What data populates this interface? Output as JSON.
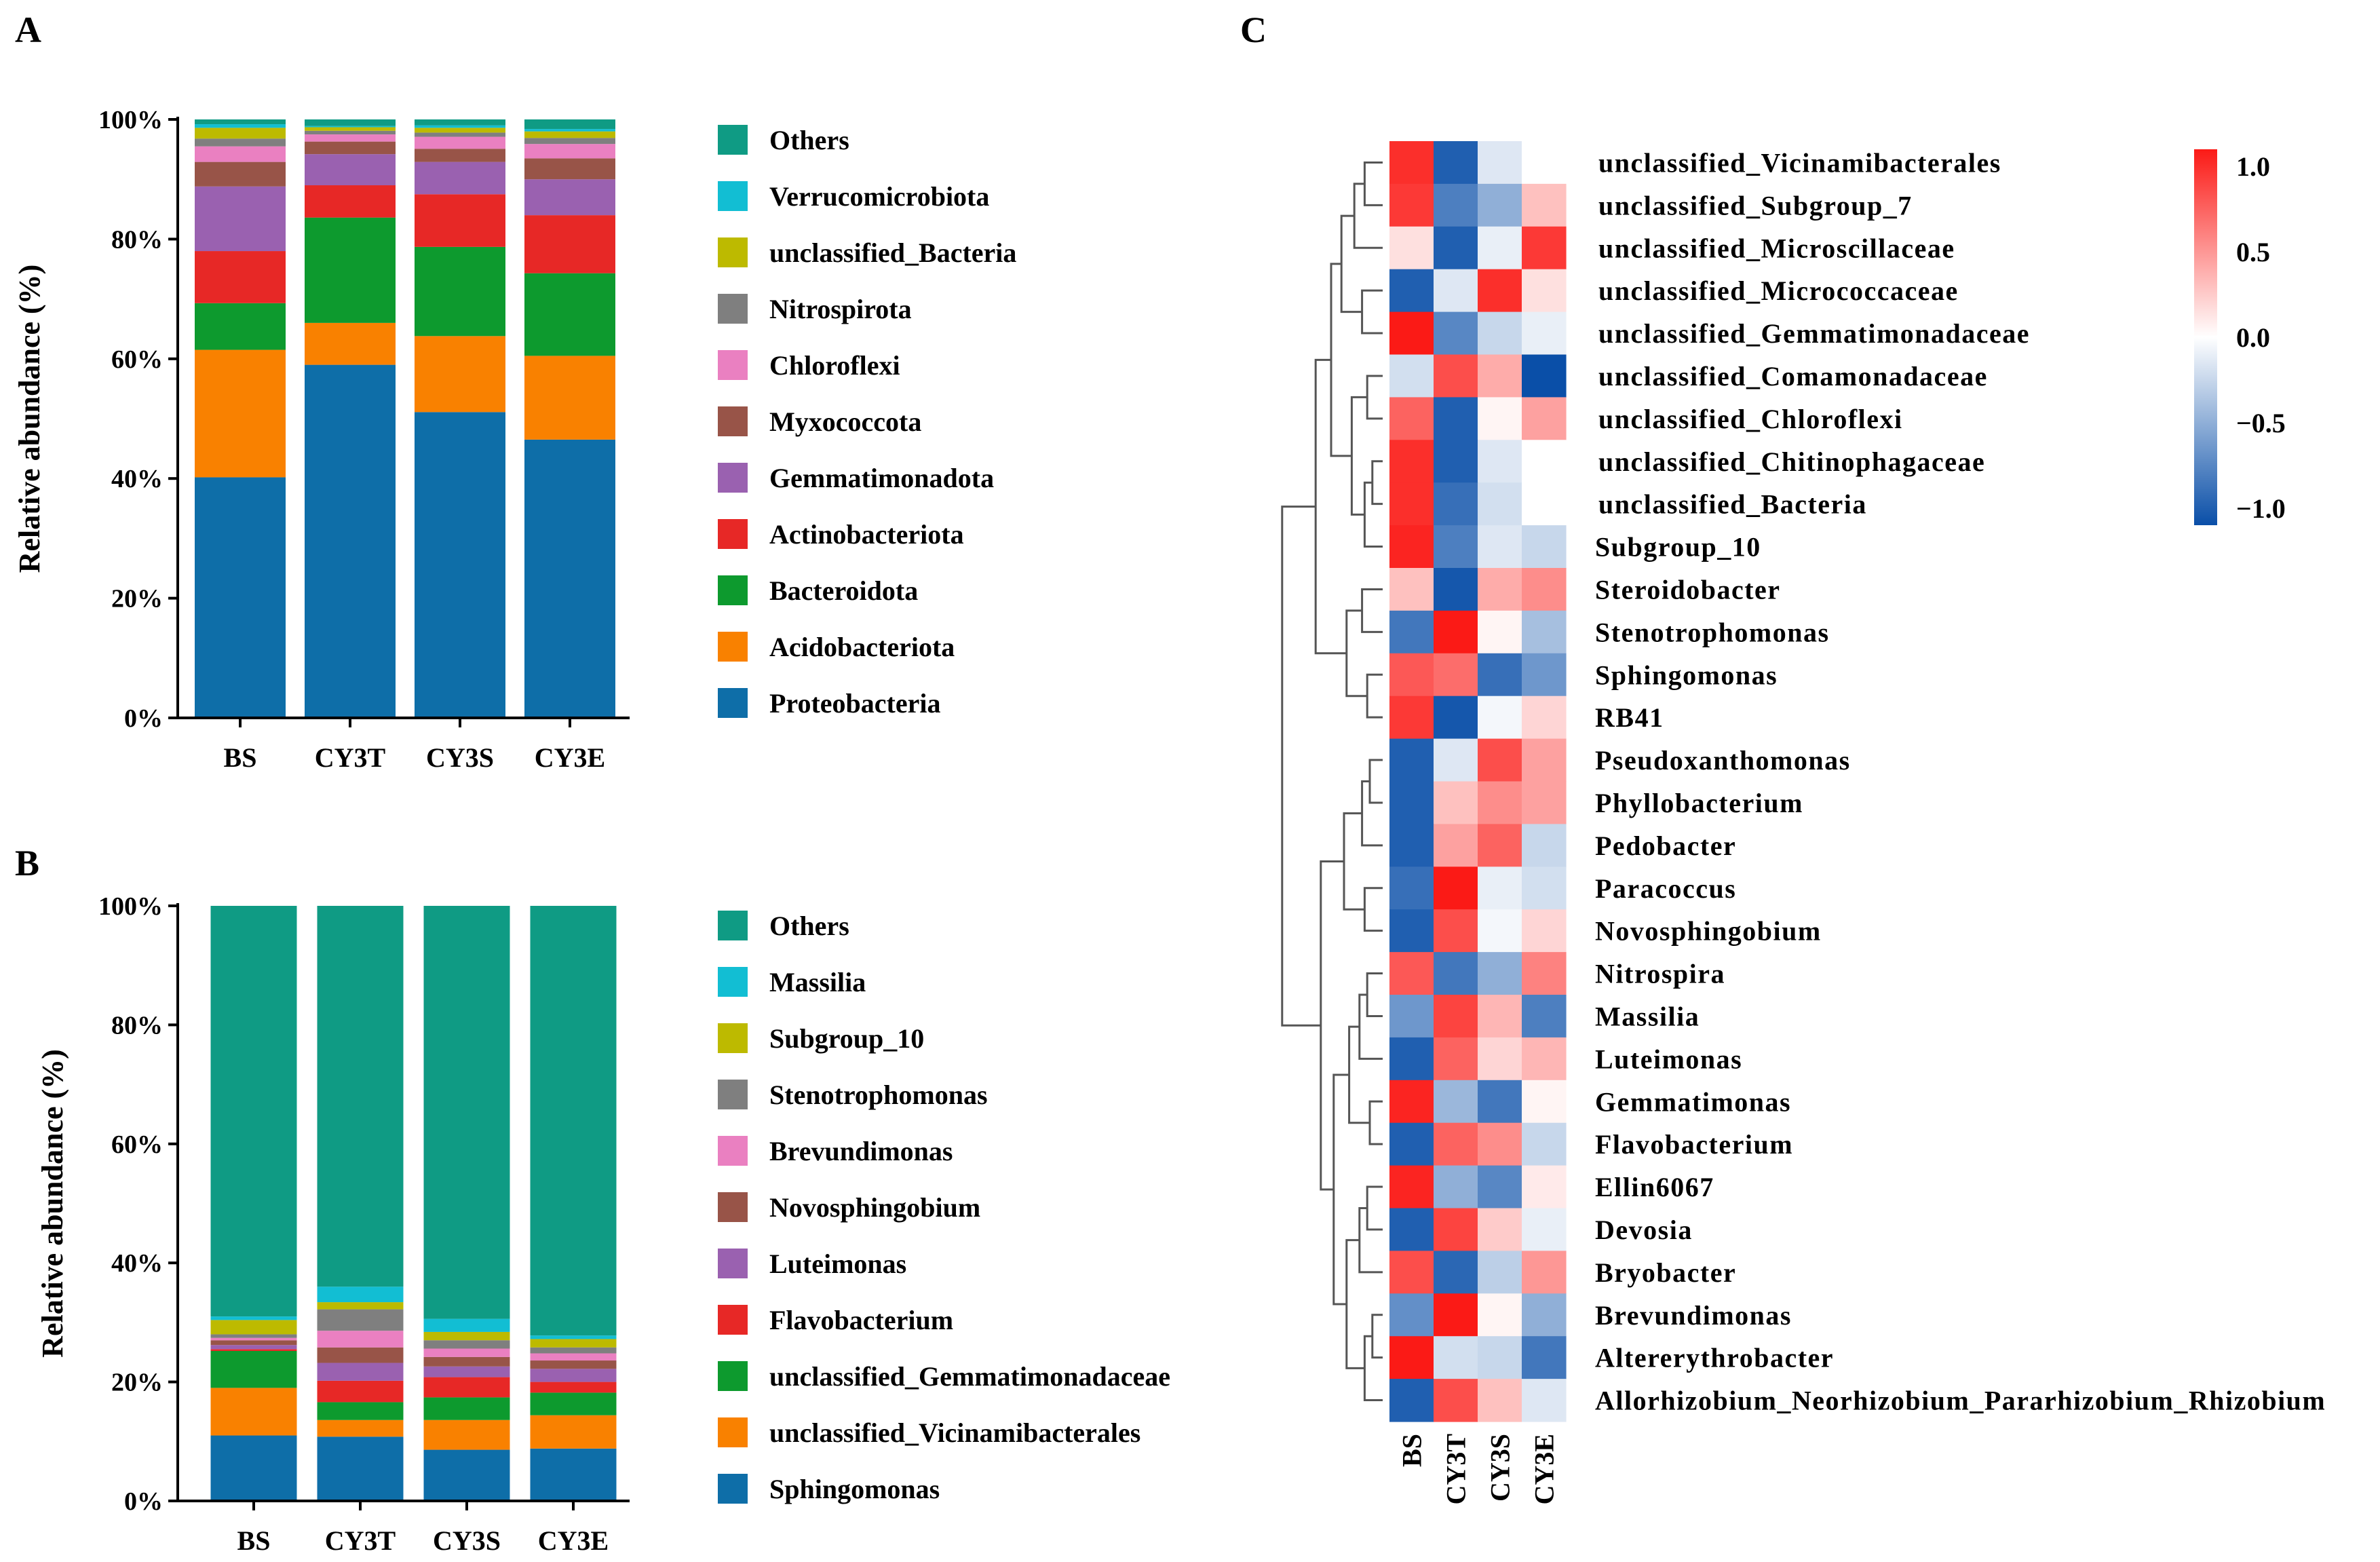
{
  "panels": {
    "a": "A",
    "b": "B",
    "c": "C"
  },
  "chart_data": [
    {
      "id": "A",
      "type": "bar",
      "stacked": true,
      "title": "",
      "xlabel": "",
      "ylabel": "Relative abundance (%)",
      "ylim": [
        0,
        100
      ],
      "yticks": [
        "0%",
        "20%",
        "40%",
        "60%",
        "80%",
        "100%"
      ],
      "categories": [
        "BS",
        "CY3T",
        "CY3S",
        "CY3E"
      ],
      "legend_position": "right",
      "series": [
        {
          "name": "Proteobacteria",
          "color": "#0e6ea8",
          "values": [
            40.2,
            59.0,
            51.1,
            46.5
          ]
        },
        {
          "name": "Acidobacteriota",
          "color": "#f98100",
          "values": [
            21.3,
            7.0,
            12.7,
            14.0
          ]
        },
        {
          "name": "Bacteroidota",
          "color": "#0d9a2e",
          "values": [
            7.8,
            17.6,
            14.9,
            13.8
          ]
        },
        {
          "name": "Actinobacteriota",
          "color": "#e72826",
          "values": [
            8.7,
            5.4,
            8.8,
            9.7
          ]
        },
        {
          "name": "Gemmatimonadota",
          "color": "#9a61b0",
          "values": [
            10.8,
            5.2,
            5.4,
            6.0
          ]
        },
        {
          "name": "Myxococcota",
          "color": "#985448",
          "values": [
            4.1,
            2.1,
            2.2,
            3.5
          ]
        },
        {
          "name": "Chloroflexi",
          "color": "#ea80c1",
          "values": [
            2.6,
            1.2,
            2.0,
            2.4
          ]
        },
        {
          "name": "Nitrospirota",
          "color": "#7f7f7f",
          "values": [
            1.3,
            0.6,
            0.7,
            1.0
          ]
        },
        {
          "name": "unclassified_Bacteria",
          "color": "#bdba00",
          "values": [
            1.8,
            0.6,
            0.8,
            1.1
          ]
        },
        {
          "name": "Verrucomicrobiota",
          "color": "#12bed3",
          "values": [
            0.6,
            0.2,
            0.4,
            0.4
          ]
        },
        {
          "name": "Others",
          "color": "#0f9b84",
          "values": [
            0.8,
            1.1,
            1.0,
            1.6
          ]
        }
      ]
    },
    {
      "id": "B",
      "type": "bar",
      "stacked": true,
      "title": "",
      "xlabel": "",
      "ylabel": "Relative abundance (%)",
      "ylim": [
        0,
        100
      ],
      "yticks": [
        "0%",
        "20%",
        "40%",
        "60%",
        "80%",
        "100%"
      ],
      "categories": [
        "BS",
        "CY3T",
        "CY3S",
        "CY3E"
      ],
      "legend_position": "right",
      "series": [
        {
          "name": "Sphingomonas",
          "color": "#0e6ea8",
          "values": [
            11.0,
            10.8,
            8.6,
            8.8
          ]
        },
        {
          "name": "unclassified_Vicinamibacterales",
          "color": "#f98100",
          "values": [
            8.0,
            2.8,
            5.0,
            5.6
          ]
        },
        {
          "name": "unclassified_Gemmatimonadaceae",
          "color": "#0d9a2e",
          "values": [
            6.2,
            3.0,
            3.8,
            3.8
          ]
        },
        {
          "name": "Flavobacterium",
          "color": "#e72826",
          "values": [
            0.3,
            3.6,
            3.4,
            1.8
          ]
        },
        {
          "name": "Luteimonas",
          "color": "#9a61b0",
          "values": [
            0.7,
            3.0,
            1.8,
            2.2
          ]
        },
        {
          "name": "Novosphingobium",
          "color": "#985448",
          "values": [
            0.8,
            2.6,
            1.6,
            1.4
          ]
        },
        {
          "name": "Brevundimonas",
          "color": "#ea80c1",
          "values": [
            0.4,
            2.8,
            1.4,
            1.2
          ]
        },
        {
          "name": "Stenotrophomonas",
          "color": "#7f7f7f",
          "values": [
            0.6,
            3.6,
            1.4,
            1.0
          ]
        },
        {
          "name": "Subgroup_10",
          "color": "#bdba00",
          "values": [
            2.4,
            1.2,
            1.4,
            1.4
          ]
        },
        {
          "name": "Massilia",
          "color": "#12bed3",
          "values": [
            0.6,
            2.6,
            2.2,
            0.6
          ]
        },
        {
          "name": "Others",
          "color": "#0f9b84",
          "values": [
            69.0,
            64.0,
            69.4,
            72.2
          ]
        }
      ]
    },
    {
      "id": "C",
      "type": "heatmap",
      "title": "",
      "columns": [
        "BS",
        "CY3T",
        "CY3S",
        "CY3E"
      ],
      "rows": [
        "unclassified_Vicinamibacterales",
        "unclassified_Subgroup_7",
        "unclassified_Microscillaceae",
        "unclassified_Micrococcaceae",
        "unclassified_Gemmatimonadaceae",
        "unclassified_Comamonadaceae",
        "unclassified_Chloroflexi",
        "unclassified_Chitinophagaceae",
        "unclassified_Bacteria",
        "Subgroup_10",
        "Steroidobacter",
        "Stenotrophomonas",
        "Sphingomonas",
        "RB41",
        "Pseudoxanthomonas",
        "Phyllobacterium",
        "Pedobacter",
        "Paracoccus",
        "Novosphingobium",
        "Nitrospira",
        "Massilia",
        "Luteimonas",
        "Gemmatimonas",
        "Flavobacterium",
        "Ellin6067",
        "Devosia",
        "Bryobacter",
        "Brevundimonas",
        "Altererythrobacter",
        "Allorhizobium_Neorhizobium_Pararhizobium_Rhizobium"
      ],
      "values": [
        [
          1.0,
          -1.0,
          -0.15,
          0.0
        ],
        [
          0.95,
          -0.8,
          -0.5,
          0.3
        ],
        [
          0.15,
          -1.0,
          -0.1,
          0.95
        ],
        [
          -1.0,
          -0.15,
          1.0,
          0.15
        ],
        [
          1.1,
          -0.75,
          -0.25,
          -0.1
        ],
        [
          -0.2,
          0.85,
          0.4,
          -1.1
        ],
        [
          0.75,
          -1.0,
          0.05,
          0.45
        ],
        [
          1.0,
          -1.0,
          -0.15,
          0.0
        ],
        [
          1.0,
          -0.9,
          -0.2,
          0.0
        ],
        [
          1.05,
          -0.8,
          -0.15,
          -0.25
        ],
        [
          0.3,
          -1.05,
          0.4,
          0.55
        ],
        [
          -0.85,
          1.1,
          0.05,
          -0.4
        ],
        [
          0.8,
          0.7,
          -0.9,
          -0.65
        ],
        [
          0.95,
          -1.05,
          -0.05,
          0.2
        ],
        [
          -1.0,
          -0.15,
          0.85,
          0.45
        ],
        [
          -1.0,
          0.3,
          0.55,
          0.45
        ],
        [
          -1.0,
          0.45,
          0.75,
          -0.25
        ],
        [
          -0.9,
          1.1,
          -0.1,
          -0.2
        ],
        [
          -1.0,
          0.85,
          -0.05,
          0.2
        ],
        [
          0.8,
          -0.85,
          -0.5,
          0.6
        ],
        [
          -0.65,
          0.9,
          0.35,
          -0.8
        ],
        [
          -1.0,
          0.75,
          0.2,
          0.35
        ],
        [
          1.05,
          -0.45,
          -0.85,
          0.05
        ],
        [
          -1.0,
          0.75,
          0.55,
          -0.25
        ],
        [
          1.05,
          -0.5,
          -0.75,
          0.1
        ],
        [
          -1.0,
          0.9,
          0.25,
          -0.1
        ],
        [
          0.85,
          -0.95,
          -0.3,
          0.5
        ],
        [
          -0.7,
          1.1,
          0.05,
          -0.5
        ],
        [
          1.1,
          -0.2,
          -0.25,
          -0.85
        ],
        [
          -1.0,
          0.85,
          0.3,
          -0.15
        ]
      ],
      "colorbar": {
        "min": -1.1,
        "max": 1.1,
        "ticks": [
          "1.0",
          "0.5",
          "0.0",
          "−0.5",
          "−1.0"
        ],
        "low_color": "#0a4fa8",
        "mid_color": "#ffffff",
        "high_color": "#fb1a16"
      },
      "dendrogram": "rows, left side"
    }
  ]
}
